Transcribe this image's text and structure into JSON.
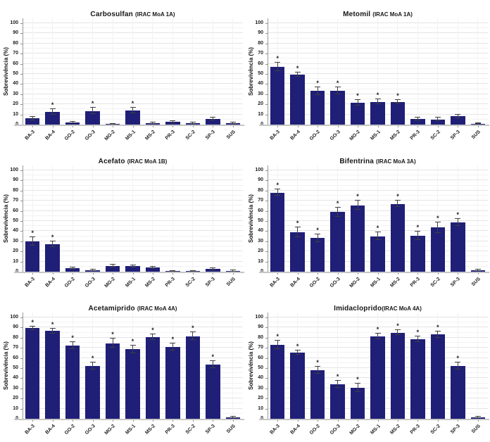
{
  "figure": {
    "ylabel": "Sobrevivência (%)",
    "sig_marker": "*",
    "yticks": [
      0,
      10,
      20,
      30,
      40,
      50,
      60,
      70,
      80,
      90,
      100
    ],
    "bar_color": "#1f1f78",
    "colors": {
      "bar": "#1f1f78",
      "error_bar": "#3f3f3f",
      "grid_major": "#e4e4e4",
      "grid_minor": "#f2f2f2",
      "axis_line": "#9a9a9a",
      "baseline": "#c6c6c6",
      "text": "#161616",
      "background": "#ffffff"
    },
    "categories": [
      "BA-3",
      "BA-4",
      "GO-2",
      "GO-3",
      "MG-2",
      "MS-1",
      "MS-2",
      "PR-3",
      "SC-2",
      "SP-3",
      "SUS"
    ]
  },
  "chart_data": [
    {
      "type": "bar",
      "title": "Carbosulfan",
      "subtitle": "(IRAC MoA 1A)",
      "ylabel": "Sobrevivência (%)",
      "ylim": [
        0,
        100
      ],
      "grid": true,
      "legend": "none",
      "categories": [
        "BA-3",
        "BA-4",
        "GO-2",
        "GO-3",
        "MG-2",
        "MS-1",
        "MS-2",
        "PR-3",
        "SC-2",
        "SP-3",
        "SUS"
      ],
      "values": [
        6,
        12.5,
        2.2,
        13.5,
        0.4,
        14,
        1.5,
        2.6,
        1.5,
        5.5,
        1.4
      ],
      "errors": [
        1.8,
        2.5,
        0.9,
        3,
        0.3,
        2.8,
        0.7,
        1.1,
        0.7,
        1.3,
        0.7
      ],
      "significant": [
        false,
        true,
        false,
        true,
        false,
        true,
        false,
        false,
        false,
        false,
        false
      ]
    },
    {
      "type": "bar",
      "title": "Metomil",
      "subtitle": "(IRAC MoA 1A)",
      "ylabel": "Sobrevivência (%)",
      "ylim": [
        0,
        100
      ],
      "grid": true,
      "legend": "none",
      "categories": [
        "BA-3",
        "BA-4",
        "GO-2",
        "GO-3",
        "MG-2",
        "MS-1",
        "MS-2",
        "PR-3",
        "SC-2",
        "SP-3",
        "SUS"
      ],
      "values": [
        57,
        49.5,
        33,
        33.5,
        21.5,
        22.5,
        22.5,
        5.5,
        5,
        8,
        1
      ],
      "errors": [
        4,
        2,
        3.5,
        3.5,
        3,
        2.5,
        2,
        1.5,
        1.8,
        1.8,
        0.5
      ],
      "significant": [
        true,
        true,
        true,
        true,
        true,
        true,
        true,
        false,
        false,
        false,
        false
      ]
    },
    {
      "type": "bar",
      "title": "Acefato",
      "subtitle": "(IRAC MoA 1B)",
      "ylabel": "Sobrevivência (%)",
      "ylim": [
        0,
        100
      ],
      "grid": true,
      "legend": "none",
      "categories": [
        "BA-3",
        "BA-4",
        "GO-2",
        "GO-3",
        "MG-2",
        "MS-1",
        "MS-2",
        "PR-3",
        "SC-2",
        "SP-3",
        "SUS"
      ],
      "values": [
        30,
        27,
        3.2,
        1.6,
        5.6,
        5.5,
        4,
        0.4,
        0.4,
        2.5,
        0.7
      ],
      "errors": [
        4,
        2.8,
        1.2,
        0.8,
        1.2,
        1,
        1.2,
        0.2,
        0.2,
        0.8,
        0.4
      ],
      "significant": [
        true,
        true,
        false,
        false,
        false,
        false,
        false,
        false,
        false,
        false,
        false
      ]
    },
    {
      "type": "bar",
      "title": "Bifentrina",
      "subtitle": "(IRAC MoA 3A)",
      "ylabel": "Sobrevivência (%)",
      "ylim": [
        0,
        100
      ],
      "grid": true,
      "legend": "none",
      "categories": [
        "BA-3",
        "BA-4",
        "GO-2",
        "GO-3",
        "MG-2",
        "MS-1",
        "MS-2",
        "PR-3",
        "SC-2",
        "SP-3",
        "SUS"
      ],
      "values": [
        78,
        39,
        33,
        59,
        65.5,
        35,
        67,
        35.5,
        43.5,
        48.5,
        1.5
      ],
      "errors": [
        3,
        5,
        3.5,
        4.5,
        4.5,
        4,
        3,
        4,
        5,
        3.5,
        0.5
      ],
      "significant": [
        true,
        true,
        true,
        true,
        true,
        true,
        true,
        true,
        true,
        true,
        false
      ]
    },
    {
      "type": "bar",
      "title": "Acetamiprido",
      "subtitle": "(IRAC MoA 4A)",
      "ylabel": "Sobrevivência (%)",
      "ylim": [
        0,
        100
      ],
      "grid": true,
      "legend": "none",
      "categories": [
        "BA-3",
        "BA-4",
        "GO-2",
        "GO-3",
        "MG-2",
        "MS-1",
        "MS-2",
        "PR-3",
        "SC-2",
        "SP-3",
        "SUS"
      ],
      "values": [
        89.5,
        86.5,
        72.5,
        52,
        74.5,
        68.5,
        80.5,
        71,
        81.5,
        53.5,
        1.3
      ],
      "errors": [
        1.8,
        2.5,
        3.5,
        3.5,
        4.5,
        4,
        3,
        3.5,
        4,
        3.8,
        0.5
      ],
      "significant": [
        true,
        true,
        true,
        true,
        true,
        true,
        true,
        true,
        true,
        true,
        false
      ]
    },
    {
      "type": "bar",
      "title": "Imidacloprido",
      "subtitle": "(IRAC MoA 4A)",
      "subtitle_no_gap": true,
      "ylabel": "Sobrevivência (%)",
      "ylim": [
        0,
        100
      ],
      "grid": true,
      "legend": "none",
      "categories": [
        "BA-3",
        "BA-4",
        "GO-2",
        "GO-3",
        "MG-2",
        "MS-1",
        "MS-2",
        "PR-3",
        "SC-2",
        "SP-3",
        "SUS"
      ],
      "values": [
        73,
        65.5,
        48,
        34,
        30.5,
        81.5,
        85,
        78.5,
        83,
        52,
        1.5
      ],
      "errors": [
        4,
        2,
        3.5,
        3.5,
        4,
        2.8,
        2.5,
        2.5,
        3,
        3.5,
        0.6
      ],
      "significant": [
        true,
        true,
        true,
        true,
        true,
        true,
        true,
        true,
        true,
        true,
        false
      ]
    }
  ]
}
